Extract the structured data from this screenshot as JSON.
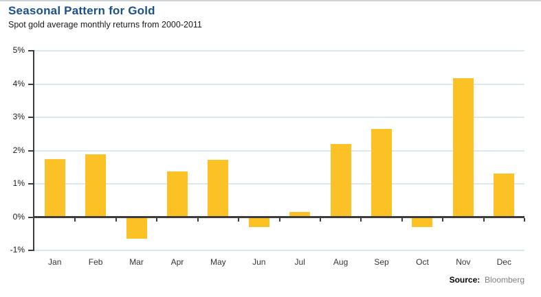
{
  "header": {
    "title": "Seasonal Pattern for Gold",
    "subtitle": "Spot gold average monthly returns from 2000-2011"
  },
  "footer": {
    "source_label": "Source:",
    "source_value": "Bloomberg"
  },
  "colors": {
    "bar_yellow": "#fcc125",
    "title_blue": "#1b4f8c",
    "gridline_blue": "#d9e8ee",
    "axis_dark": "#3c3c3c"
  },
  "chart_data": {
    "type": "bar",
    "title": "Seasonal Pattern for Gold",
    "subtitle": "Spot gold average monthly returns from 2000-2011",
    "categories": [
      "Jan",
      "Feb",
      "Mar",
      "Apr",
      "May",
      "Jun",
      "Jul",
      "Aug",
      "Sep",
      "Oct",
      "Nov",
      "Dec"
    ],
    "values": [
      1.75,
      1.88,
      -0.65,
      1.38,
      1.72,
      -0.3,
      0.15,
      2.2,
      2.65,
      -0.3,
      4.18,
      1.3
    ],
    "xlabel": "",
    "ylabel": "",
    "ylim": [
      -1,
      5
    ],
    "y_tick_labels": [
      "5%",
      "4%",
      "3%",
      "2%",
      "1%",
      "0%",
      "-1%"
    ],
    "grid": true,
    "legend": "none",
    "source": "Bloomberg"
  }
}
